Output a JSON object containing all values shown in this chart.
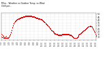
{
  "title": "Milw... Weather vs Wind\nChill per...",
  "bg_color": "#ffffff",
  "dot_color1": "#ff0000",
  "dot_color2": "#dd0000",
  "grid_color": "#999999",
  "ylim": [
    5,
    52
  ],
  "yticks": [
    10,
    15,
    20,
    25,
    30,
    35,
    40,
    45,
    50
  ],
  "temp_data": [
    14,
    13,
    12,
    11,
    10,
    9,
    9,
    10,
    11,
    9,
    8,
    9,
    10,
    12,
    14,
    18,
    22,
    26,
    30,
    33,
    35,
    37,
    38,
    39,
    40,
    41,
    42,
    42,
    43,
    43,
    44,
    44,
    44,
    45,
    45,
    45,
    46,
    46,
    46,
    46,
    46,
    46,
    46,
    46,
    46,
    46,
    46,
    45,
    45,
    45,
    45,
    44,
    44,
    43,
    43,
    43,
    42,
    42,
    42,
    41,
    40,
    40,
    39,
    38,
    37,
    36,
    35,
    33,
    32,
    31,
    30,
    28,
    27,
    25,
    24,
    22,
    21,
    20,
    19,
    18,
    17,
    16,
    16,
    15,
    14,
    14,
    13,
    13,
    13,
    13,
    13,
    13,
    14,
    14,
    14,
    14,
    14,
    14,
    14,
    14,
    14,
    14,
    14,
    13,
    13,
    13,
    12,
    11,
    10,
    9,
    8,
    8,
    8,
    8,
    9,
    10,
    11,
    13,
    14,
    15,
    16,
    17,
    18,
    19,
    20,
    21,
    22,
    23,
    24,
    25,
    26,
    27,
    28,
    28,
    29,
    29,
    28,
    27,
    25,
    23,
    20,
    18,
    15,
    12
  ],
  "wind_data": [
    10,
    9,
    9,
    8,
    8,
    8,
    8,
    8,
    8,
    7,
    7,
    8,
    9,
    11,
    13,
    17,
    21,
    25,
    29,
    32,
    34,
    36,
    37,
    38,
    39,
    40,
    41,
    41,
    42,
    42,
    43,
    43,
    43,
    44,
    44,
    44,
    45,
    45,
    45,
    45,
    45,
    45,
    45,
    45,
    45,
    45,
    45,
    44,
    44,
    44,
    44,
    43,
    43,
    42,
    42,
    42,
    41,
    41,
    41,
    40,
    39,
    39,
    38,
    37,
    36,
    35,
    34,
    32,
    31,
    30,
    29,
    27,
    26,
    24,
    23,
    21,
    20,
    19,
    18,
    17,
    16,
    15,
    15,
    14,
    13,
    13,
    12,
    12,
    12,
    12,
    12,
    12,
    13,
    13,
    13,
    13,
    13,
    13,
    13,
    13,
    13,
    13,
    13,
    12,
    12,
    12,
    11,
    10,
    9,
    8,
    7,
    7,
    7,
    7,
    8,
    9,
    10,
    12,
    13,
    14,
    15,
    16,
    17,
    18,
    19,
    20,
    21,
    22,
    23,
    24,
    25,
    26,
    27,
    27,
    28,
    28,
    27,
    26,
    24,
    22,
    19,
    17,
    14,
    11
  ],
  "xtick_labels": [
    "0:00",
    "1:00",
    "2:00",
    "3:00",
    "4:00",
    "5:00",
    "6:00",
    "7:00",
    "8:00",
    "9:00",
    "10:00",
    "11:00",
    "12:00",
    "13:00",
    "14:00",
    "15:00",
    "16:00",
    "17:00",
    "18:00",
    "19:00",
    "20:00",
    "21:00",
    "22:00",
    "23:00"
  ]
}
